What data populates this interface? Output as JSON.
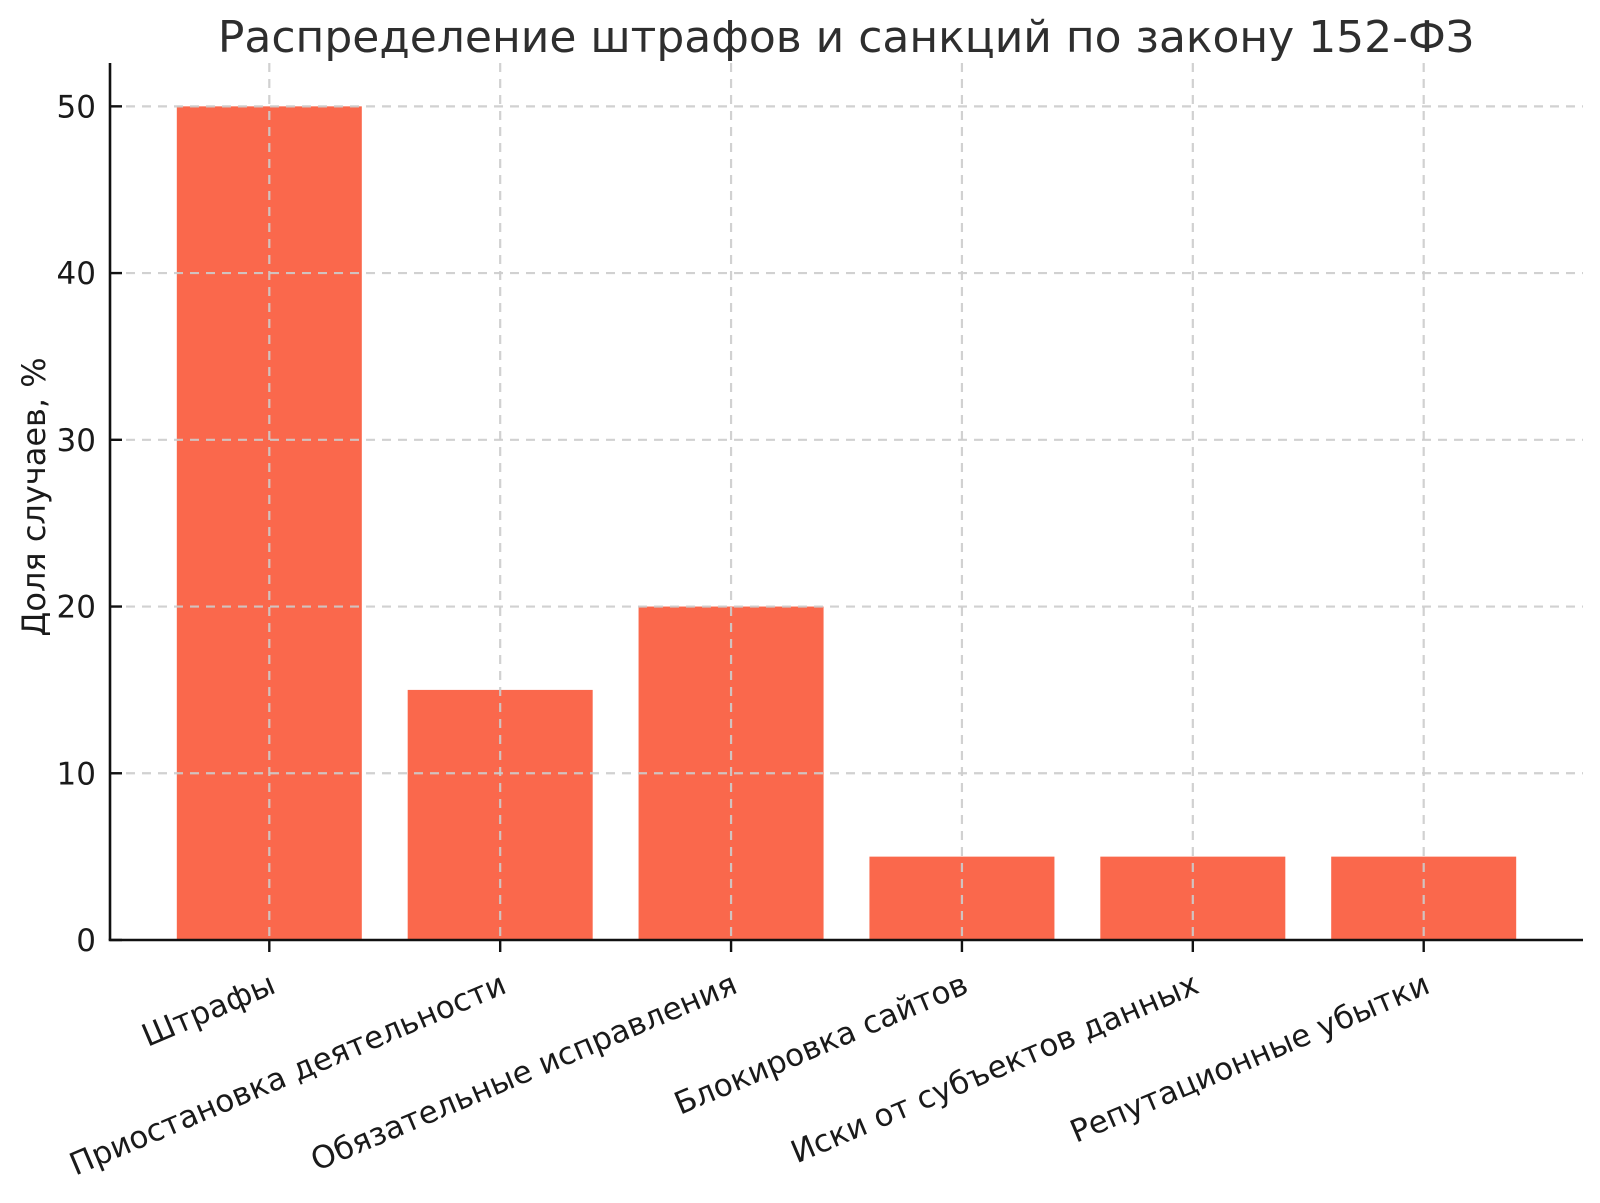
{
  "chart_data": {
    "type": "bar",
    "title": "Распределение штрафов и санкций по закону 152-ФЗ",
    "xlabel": "",
    "ylabel": "Доля случаев, %",
    "categories": [
      "Штрафы",
      "Приостановка деятельности",
      "Обязательные исправления",
      "Блокировка сайтов",
      "Иски от субъектов данных",
      "Репутационные убытки"
    ],
    "values": [
      50,
      15,
      20,
      5,
      5,
      5
    ],
    "unit": "%",
    "ylim": [
      0,
      52.6
    ],
    "yticks": [
      0,
      10,
      20,
      30,
      40,
      50
    ],
    "bar_color": "#FA684C",
    "grid": {
      "visible": true,
      "style": "dashed",
      "color": "#cccccc",
      "on_top_of_bars": true
    },
    "axis_color": "#111111",
    "text_color": "#1a1a1a",
    "x_tick_label_rotation_deg": 23,
    "legend": null
  }
}
